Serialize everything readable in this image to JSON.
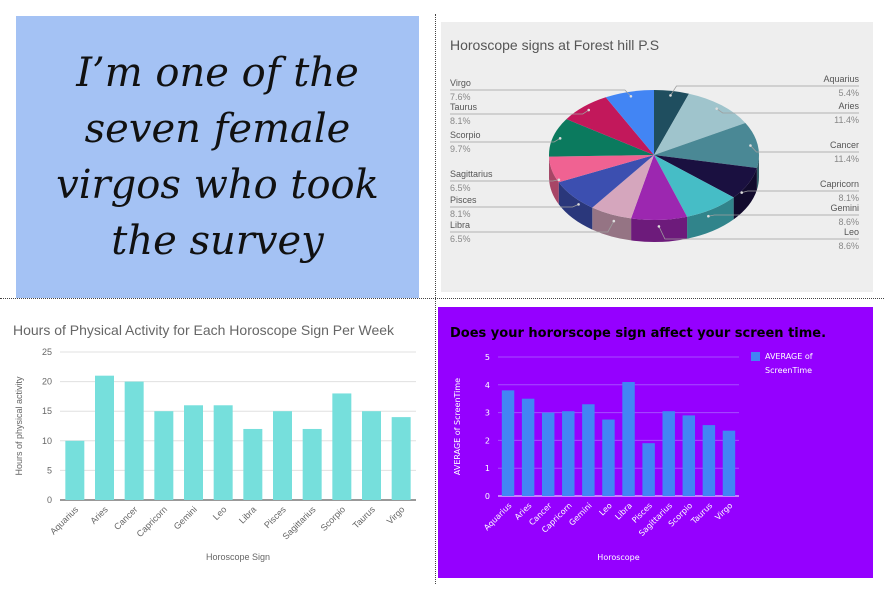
{
  "quote": {
    "text": "I’m one of the seven female virgos who took the survey"
  },
  "chart_data": [
    {
      "type": "pie",
      "title": "Horoscope signs at Forest hill P.S",
      "slices": [
        {
          "label": "Aquarius",
          "value": 5.4,
          "pct": "5.4%",
          "color": "#1f4e5f"
        },
        {
          "label": "Aries",
          "value": 11.4,
          "pct": "11.4%",
          "color": "#9fc4cc"
        },
        {
          "label": "Cancer",
          "value": 11.4,
          "pct": "11.4%",
          "color": "#4a8895"
        },
        {
          "label": "Capricorn",
          "value": 8.1,
          "pct": "8.1%",
          "color": "#1a1040"
        },
        {
          "label": "Gemini",
          "value": 8.6,
          "pct": "8.6%",
          "color": "#46bdc6"
        },
        {
          "label": "Leo",
          "value": 8.6,
          "pct": "8.6%",
          "color": "#9c27b0"
        },
        {
          "label": "Libra",
          "value": 6.5,
          "pct": "6.5%",
          "color": "#d5a6bd"
        },
        {
          "label": "Pisces",
          "value": 8.1,
          "pct": "8.1%",
          "color": "#3c4fb0"
        },
        {
          "label": "Sagittarius",
          "value": 6.5,
          "pct": "6.5%",
          "color": "#f06292"
        },
        {
          "label": "Scorpio",
          "value": 9.7,
          "pct": "9.7%",
          "color": "#0b7a5e"
        },
        {
          "label": "Taurus",
          "value": 8.1,
          "pct": "8.1%",
          "color": "#c2185b"
        },
        {
          "label": "Virgo",
          "value": 7.6,
          "pct": "7.6%",
          "color": "#4285f4"
        }
      ]
    },
    {
      "type": "bar",
      "title": "Hours of Physical Activity for Each Horoscope Sign Per Week",
      "xlabel": "Horoscope Sign",
      "ylabel": "Hours of physical activity",
      "ylim": [
        0,
        25
      ],
      "yticks": [
        "0",
        "5",
        "10",
        "15",
        "20",
        "25"
      ],
      "color": "#76dfdc",
      "categories": [
        "Aquarius",
        "Aries",
        "Cancer",
        "Capricorn",
        "Gemini",
        "Leo",
        "Libra",
        "Pisces",
        "Sagittarius",
        "Scorpio",
        "Taurus",
        "Virgo"
      ],
      "values": [
        10,
        21,
        20,
        15,
        16,
        16,
        12,
        15,
        12,
        18,
        15,
        14
      ]
    },
    {
      "type": "bar",
      "title": "Does your hororscope sign affect your screen time.",
      "xlabel": "Horoscope",
      "ylabel": "AVERAGE of ScreenTime",
      "ylim": [
        0,
        5
      ],
      "yticks": [
        "0",
        "1",
        "2",
        "3",
        "4",
        "5"
      ],
      "legend": "AVERAGE of ScreenTime",
      "legend_position": "top-right",
      "color": "#4285f4",
      "categories": [
        "Aquarius",
        "Aries",
        "Cancer",
        "Capricorn",
        "Gemini",
        "Leo",
        "Libra",
        "Pisces",
        "Sagittarius",
        "Scorpio",
        "Taurus",
        "Virgo"
      ],
      "values": [
        3.8,
        3.5,
        3.0,
        3.05,
        3.3,
        2.75,
        4.1,
        1.9,
        3.05,
        2.9,
        2.55,
        2.35
      ]
    }
  ]
}
